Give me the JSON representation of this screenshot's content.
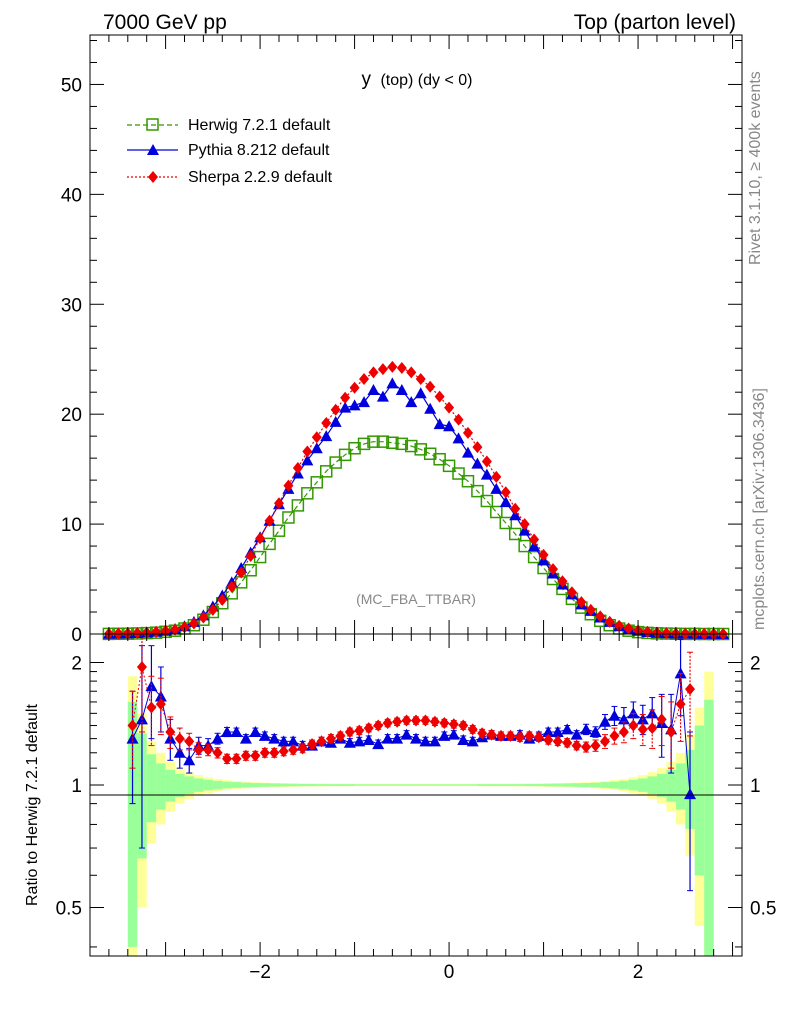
{
  "header": {
    "energy": "7000 GeV pp",
    "process": "Top (parton level)"
  },
  "side": {
    "rivet": "Rivet 3.1.10, ≥ 400k events",
    "mcplots": "mcplots.cern.ch [arXiv:1306.3436]"
  },
  "chart_data": [
    {
      "type": "scatter",
      "title": "y (top) (dy < 0)",
      "title_main": "y",
      "title_sub": "(top) (dy < 0)",
      "watermark": "(MC_FBA_TTBAR)",
      "xlim": [
        -3.8,
        3.1
      ],
      "ylim": [
        0,
        54.5
      ],
      "yticks": [
        0,
        10,
        20,
        30,
        40,
        50
      ],
      "ytick_labels": [
        "0",
        "10",
        "20",
        "30",
        "40",
        "50"
      ],
      "legend_position": "top-left",
      "series": [
        {
          "name": "Herwig 7.2.1 default",
          "color": "#339900",
          "marker": "open-square",
          "line": "dashed",
          "x": [
            -3.6,
            -3.5,
            -3.4,
            -3.3,
            -3.2,
            -3.1,
            -3.0,
            -2.9,
            -2.8,
            -2.7,
            -2.6,
            -2.5,
            -2.4,
            -2.3,
            -2.2,
            -2.1,
            -2.0,
            -1.9,
            -1.8,
            -1.7,
            -1.6,
            -1.5,
            -1.4,
            -1.3,
            -1.2,
            -1.1,
            -1.0,
            -0.9,
            -0.8,
            -0.7,
            -0.6,
            -0.5,
            -0.4,
            -0.3,
            -0.2,
            -0.1,
            0.0,
            0.1,
            0.2,
            0.3,
            0.4,
            0.5,
            0.6,
            0.7,
            0.8,
            0.9,
            1.0,
            1.1,
            1.2,
            1.3,
            1.4,
            1.5,
            1.6,
            1.7,
            1.8,
            1.9,
            2.0,
            2.1,
            2.2,
            2.3,
            2.4,
            2.5,
            2.6,
            2.7,
            2.8,
            2.9
          ],
          "y": [
            0.01,
            0.02,
            0.03,
            0.05,
            0.08,
            0.12,
            0.2,
            0.3,
            0.5,
            0.8,
            1.3,
            2.0,
            2.8,
            3.7,
            4.7,
            5.8,
            7.0,
            8.2,
            9.4,
            10.6,
            11.7,
            12.8,
            13.8,
            14.8,
            15.6,
            16.3,
            16.9,
            17.3,
            17.5,
            17.5,
            17.4,
            17.3,
            17.1,
            16.8,
            16.4,
            15.9,
            15.3,
            14.6,
            13.9,
            13.0,
            12.1,
            11.1,
            10.1,
            9.1,
            8.0,
            7.0,
            6.0,
            5.0,
            4.1,
            3.2,
            2.4,
            1.8,
            1.2,
            0.8,
            0.5,
            0.3,
            0.17,
            0.1,
            0.06,
            0.04,
            0.02,
            0.01,
            0.01,
            0.0,
            0.0,
            0.0
          ]
        },
        {
          "name": "Pythia 8.212 default",
          "color": "#0000dd",
          "marker": "filled-triangle",
          "line": "solid",
          "x": [
            -3.6,
            -3.5,
            -3.4,
            -3.3,
            -3.2,
            -3.1,
            -3.0,
            -2.9,
            -2.8,
            -2.7,
            -2.6,
            -2.5,
            -2.4,
            -2.3,
            -2.2,
            -2.1,
            -2.0,
            -1.9,
            -1.8,
            -1.7,
            -1.6,
            -1.5,
            -1.4,
            -1.3,
            -1.2,
            -1.1,
            -1.0,
            -0.9,
            -0.8,
            -0.7,
            -0.6,
            -0.5,
            -0.4,
            -0.3,
            -0.2,
            -0.1,
            0.0,
            0.1,
            0.2,
            0.3,
            0.4,
            0.5,
            0.6,
            0.7,
            0.8,
            0.9,
            1.0,
            1.1,
            1.2,
            1.3,
            1.4,
            1.5,
            1.6,
            1.7,
            1.8,
            1.9,
            2.0,
            2.1,
            2.2,
            2.3,
            2.4,
            2.5,
            2.6,
            2.7,
            2.8,
            2.9
          ],
          "y": [
            0.02,
            0.04,
            0.06,
            0.09,
            0.13,
            0.2,
            0.3,
            0.45,
            0.7,
            1.1,
            1.7,
            2.5,
            3.5,
            4.7,
            6.0,
            7.4,
            8.8,
            10.3,
            11.8,
            13.2,
            14.6,
            15.8,
            16.9,
            18.0,
            19.3,
            20.6,
            20.8,
            21.1,
            22.2,
            21.6,
            22.8,
            22.2,
            21.1,
            21.9,
            20.5,
            19.1,
            18.9,
            17.8,
            16.5,
            15.5,
            14.5,
            13.2,
            12.0,
            10.8,
            9.4,
            8.0,
            6.7,
            5.5,
            4.5,
            3.6,
            2.7,
            2.1,
            1.5,
            1.1,
            0.7,
            0.45,
            0.3,
            0.18,
            0.1,
            0.07,
            0.05,
            0.03,
            0.02,
            0.01,
            0.01,
            0.0
          ]
        },
        {
          "name": "Sherpa 2.2.9 default",
          "color": "#ee0000",
          "marker": "filled-diamond",
          "line": "dotted",
          "x": [
            -3.6,
            -3.5,
            -3.4,
            -3.3,
            -3.2,
            -3.1,
            -3.0,
            -2.9,
            -2.8,
            -2.7,
            -2.6,
            -2.5,
            -2.4,
            -2.3,
            -2.2,
            -2.1,
            -2.0,
            -1.9,
            -1.8,
            -1.7,
            -1.6,
            -1.5,
            -1.4,
            -1.3,
            -1.2,
            -1.1,
            -1.0,
            -0.9,
            -0.8,
            -0.7,
            -0.6,
            -0.5,
            -0.4,
            -0.3,
            -0.2,
            -0.1,
            0.0,
            0.1,
            0.2,
            0.3,
            0.4,
            0.5,
            0.6,
            0.7,
            0.8,
            0.9,
            1.0,
            1.1,
            1.2,
            1.3,
            1.4,
            1.5,
            1.6,
            1.7,
            1.8,
            1.9,
            2.0,
            2.1,
            2.2,
            2.3,
            2.4,
            2.5,
            2.6,
            2.7,
            2.8,
            2.9
          ],
          "y": [
            0.02,
            0.04,
            0.06,
            0.09,
            0.13,
            0.19,
            0.28,
            0.4,
            0.6,
            0.95,
            1.5,
            2.2,
            3.1,
            4.3,
            5.6,
            7.1,
            8.7,
            10.3,
            11.9,
            13.5,
            15.1,
            16.6,
            17.9,
            19.2,
            20.4,
            21.5,
            22.4,
            23.2,
            23.8,
            24.1,
            24.3,
            24.2,
            23.8,
            23.2,
            22.5,
            21.6,
            20.6,
            19.5,
            18.3,
            17.0,
            15.7,
            14.3,
            12.9,
            11.4,
            10.0,
            8.6,
            7.2,
            5.9,
            4.8,
            3.8,
            2.9,
            2.2,
            1.6,
            1.1,
            0.75,
            0.5,
            0.32,
            0.2,
            0.12,
            0.08,
            0.05,
            0.03,
            0.02,
            0.01,
            0.01,
            0.0
          ]
        }
      ]
    },
    {
      "type": "scatter",
      "ylabel": "Ratio to Herwig 7.2.1 default",
      "xlim": [
        -3.8,
        3.1
      ],
      "ylim": [
        0.38,
        2.35
      ],
      "log_y": true,
      "xticks": [
        -2,
        0,
        2
      ],
      "xtick_labels": [
        "−2",
        "0",
        "2"
      ],
      "yticks": [
        0.5,
        1,
        2
      ],
      "ytick_labels": [
        "0.5",
        "1",
        "2"
      ],
      "reference_line": 1,
      "band_colors": {
        "outer": "#ffff99",
        "inner": "#99ff99"
      },
      "bands": {
        "x": [
          -3.35,
          -3.25,
          -3.15,
          -3.05,
          -2.95,
          -2.85,
          -2.75,
          -2.65,
          -2.55,
          -2.45,
          -2.35,
          -2.25,
          -2.15,
          -2.05,
          -1.95,
          -1.85,
          -1.75,
          -1.65,
          -1.55,
          -1.45,
          -1.35,
          -1.25,
          -1.15,
          -1.05,
          -0.95,
          -0.85,
          -0.75,
          -0.65,
          -0.55,
          -0.45,
          -0.35,
          -0.25,
          -0.15,
          -0.05,
          0.05,
          0.15,
          0.25,
          0.35,
          0.45,
          0.55,
          0.65,
          0.75,
          0.85,
          0.95,
          1.05,
          1.15,
          1.25,
          1.35,
          1.45,
          1.55,
          1.65,
          1.75,
          1.85,
          1.95,
          2.05,
          2.15,
          2.25,
          2.35,
          2.45,
          2.55,
          2.65,
          2.75
        ],
        "outer_half": [
          0.85,
          0.5,
          0.28,
          0.2,
          0.14,
          0.1,
          0.075,
          0.058,
          0.045,
          0.035,
          0.028,
          0.023,
          0.019,
          0.016,
          0.014,
          0.012,
          0.011,
          0.01,
          0.009,
          0.008,
          0.008,
          0.007,
          0.007,
          0.007,
          0.006,
          0.006,
          0.006,
          0.006,
          0.006,
          0.006,
          0.006,
          0.006,
          0.006,
          0.006,
          0.006,
          0.006,
          0.006,
          0.007,
          0.007,
          0.007,
          0.007,
          0.008,
          0.008,
          0.009,
          0.01,
          0.011,
          0.012,
          0.014,
          0.016,
          0.019,
          0.023,
          0.028,
          0.035,
          0.045,
          0.058,
          0.075,
          0.1,
          0.14,
          0.2,
          0.33,
          0.55,
          0.9
        ],
        "inner_half": [
          0.6,
          0.34,
          0.19,
          0.13,
          0.09,
          0.065,
          0.05,
          0.038,
          0.03,
          0.024,
          0.019,
          0.016,
          0.013,
          0.011,
          0.01,
          0.009,
          0.008,
          0.007,
          0.006,
          0.006,
          0.005,
          0.005,
          0.005,
          0.005,
          0.004,
          0.004,
          0.004,
          0.004,
          0.004,
          0.004,
          0.004,
          0.004,
          0.004,
          0.004,
          0.004,
          0.004,
          0.004,
          0.005,
          0.005,
          0.005,
          0.005,
          0.005,
          0.006,
          0.006,
          0.007,
          0.008,
          0.009,
          0.01,
          0.011,
          0.013,
          0.016,
          0.019,
          0.024,
          0.03,
          0.038,
          0.05,
          0.065,
          0.09,
          0.13,
          0.22,
          0.4,
          0.62
        ]
      },
      "series": [
        {
          "name": "Pythia 8.212 default",
          "color": "#0000dd",
          "x": [
            -3.35,
            -3.25,
            -3.15,
            -3.05,
            -2.95,
            -2.85,
            -2.75,
            -2.65,
            -2.55,
            -2.45,
            -2.35,
            -2.25,
            -2.15,
            -2.05,
            -1.95,
            -1.85,
            -1.75,
            -1.65,
            -1.55,
            -1.45,
            -1.35,
            -1.25,
            -1.15,
            -1.05,
            -0.95,
            -0.85,
            -0.75,
            -0.65,
            -0.55,
            -0.45,
            -0.35,
            -0.25,
            -0.15,
            -0.05,
            0.05,
            0.15,
            0.25,
            0.35,
            0.45,
            0.55,
            0.65,
            0.75,
            0.85,
            0.95,
            1.05,
            1.15,
            1.25,
            1.35,
            1.45,
            1.55,
            1.65,
            1.75,
            1.85,
            1.95,
            2.05,
            2.15,
            2.25,
            2.35,
            2.45,
            2.55
          ],
          "y": [
            1.3,
            1.45,
            1.75,
            1.65,
            1.3,
            1.2,
            1.15,
            1.25,
            1.25,
            1.3,
            1.35,
            1.35,
            1.3,
            1.35,
            1.32,
            1.3,
            1.28,
            1.28,
            1.25,
            1.25,
            1.28,
            1.27,
            1.3,
            1.27,
            1.28,
            1.29,
            1.26,
            1.3,
            1.3,
            1.33,
            1.3,
            1.28,
            1.28,
            1.32,
            1.33,
            1.29,
            1.28,
            1.31,
            1.33,
            1.32,
            1.32,
            1.33,
            1.3,
            1.32,
            1.35,
            1.35,
            1.37,
            1.33,
            1.37,
            1.35,
            1.43,
            1.48,
            1.45,
            1.5,
            1.45,
            1.5,
            1.42,
            1.37,
            1.88,
            0.95
          ],
          "err": [
            0.4,
            0.75,
            0.45,
            0.3,
            0.15,
            0.1,
            0.08,
            0.06,
            0.05,
            0.04,
            0.035,
            0.03,
            0.03,
            0.03,
            0.03,
            0.03,
            0.03,
            0.03,
            0.03,
            0.03,
            0.03,
            0.03,
            0.03,
            0.03,
            0.03,
            0.03,
            0.03,
            0.03,
            0.03,
            0.03,
            0.03,
            0.03,
            0.03,
            0.03,
            0.03,
            0.03,
            0.03,
            0.03,
            0.03,
            0.03,
            0.03,
            0.03,
            0.03,
            0.03,
            0.03,
            0.03,
            0.03,
            0.03,
            0.04,
            0.04,
            0.06,
            0.08,
            0.1,
            0.1,
            0.12,
            0.14,
            0.25,
            0.3,
            0.4,
            0.4
          ]
        },
        {
          "name": "Sherpa 2.2.9 default",
          "color": "#ee0000",
          "x": [
            -3.35,
            -3.25,
            -3.15,
            -3.05,
            -2.95,
            -2.85,
            -2.75,
            -2.65,
            -2.55,
            -2.45,
            -2.35,
            -2.25,
            -2.15,
            -2.05,
            -1.95,
            -1.85,
            -1.75,
            -1.65,
            -1.55,
            -1.45,
            -1.35,
            -1.25,
            -1.15,
            -1.05,
            -0.95,
            -0.85,
            -0.75,
            -0.65,
            -0.55,
            -0.45,
            -0.35,
            -0.25,
            -0.15,
            -0.05,
            0.05,
            0.15,
            0.25,
            0.35,
            0.45,
            0.55,
            0.65,
            0.75,
            0.85,
            0.95,
            1.05,
            1.15,
            1.25,
            1.35,
            1.45,
            1.55,
            1.65,
            1.75,
            1.85,
            1.95,
            2.05,
            2.15,
            2.25,
            2.35,
            2.45,
            2.55
          ],
          "y": [
            1.4,
            1.95,
            1.55,
            1.58,
            1.35,
            1.3,
            1.28,
            1.22,
            1.22,
            1.2,
            1.16,
            1.16,
            1.18,
            1.18,
            1.2,
            1.2,
            1.21,
            1.22,
            1.23,
            1.26,
            1.28,
            1.3,
            1.32,
            1.35,
            1.36,
            1.38,
            1.4,
            1.42,
            1.43,
            1.44,
            1.44,
            1.44,
            1.43,
            1.42,
            1.41,
            1.4,
            1.37,
            1.34,
            1.33,
            1.32,
            1.32,
            1.31,
            1.32,
            1.31,
            1.29,
            1.28,
            1.27,
            1.25,
            1.24,
            1.25,
            1.28,
            1.32,
            1.35,
            1.4,
            1.37,
            1.38,
            1.45,
            1.35,
            1.58,
            1.72
          ],
          "err": [
            0.3,
            0.6,
            0.3,
            0.25,
            0.12,
            0.08,
            0.06,
            0.05,
            0.04,
            0.035,
            0.03,
            0.03,
            0.03,
            0.03,
            0.03,
            0.03,
            0.03,
            0.03,
            0.03,
            0.03,
            0.03,
            0.03,
            0.03,
            0.03,
            0.03,
            0.03,
            0.03,
            0.03,
            0.03,
            0.03,
            0.03,
            0.03,
            0.03,
            0.03,
            0.03,
            0.03,
            0.03,
            0.03,
            0.03,
            0.03,
            0.03,
            0.03,
            0.03,
            0.03,
            0.03,
            0.03,
            0.03,
            0.03,
            0.035,
            0.04,
            0.05,
            0.06,
            0.08,
            0.1,
            0.12,
            0.15,
            0.2,
            0.25,
            0.3,
            0.4
          ]
        }
      ]
    }
  ]
}
